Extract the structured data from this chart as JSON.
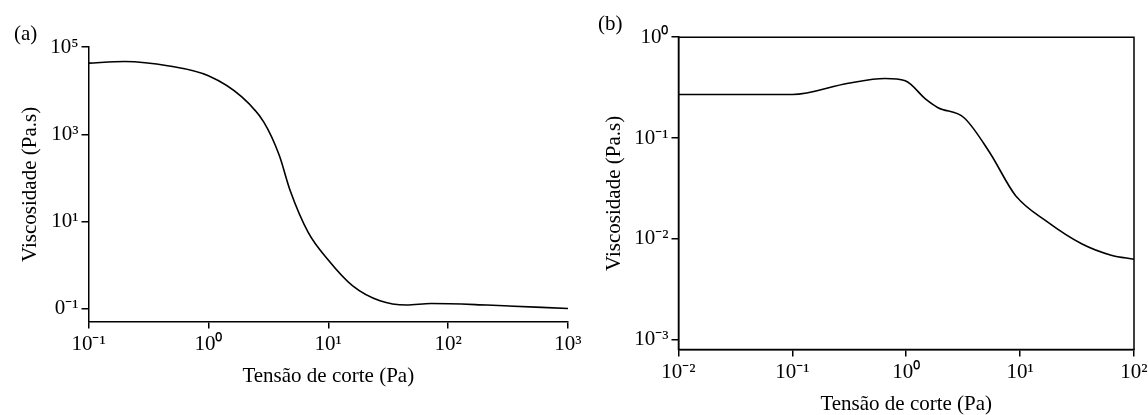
{
  "chart_data": [
    {
      "type": "line",
      "title": "(a)",
      "xlabel": "Tensão de corte (Pa)",
      "ylabel": "Viscosidade (Pa.s)",
      "log": "xy",
      "x": [
        0.1,
        0.2,
        0.47,
        1,
        1.9,
        2.9,
        3.9,
        4.8,
        6.8,
        10,
        16,
        27,
        45,
        72,
        210,
        1000
      ],
      "series": [
        {
          "color": "#000000",
          "values": [
            43000,
            47000,
            37000,
            22000,
            7200,
            1900,
            330,
            52,
            5.6,
            1.3,
            0.33,
            0.15,
            0.12,
            0.13,
            0.12,
            0.1
          ]
        }
      ],
      "xlim": [
        0.1,
        1000
      ],
      "ylim": [
        0.05,
        100000
      ],
      "xticks": [
        {
          "value": 0.1,
          "label": "10⁻¹"
        },
        {
          "value": 1,
          "label": "10⁰"
        },
        {
          "value": 10,
          "label": "10¹"
        },
        {
          "value": 100,
          "label": "10²"
        },
        {
          "value": 1000,
          "label": "10³"
        }
      ],
      "yticks": [
        {
          "value": 0.1,
          "label": "0⁻¹"
        },
        {
          "value": 10,
          "label": "10¹"
        },
        {
          "value": 1000,
          "label": "10³"
        },
        {
          "value": 100000,
          "label": "10⁵"
        }
      ]
    },
    {
      "type": "line",
      "title": "(b)",
      "xlabel": "Tensão de corte (Pa)",
      "ylabel": "Viscosidade (Pa.s)",
      "log": "xy",
      "x": [
        0.01,
        0.1,
        0.31,
        0.65,
        0.98,
        1.5,
        1.9,
        3.2,
        5.4,
        9.1,
        17,
        35,
        63,
        100
      ],
      "series": [
        {
          "color": "#000000",
          "values": [
            0.27,
            0.27,
            0.35,
            0.39,
            0.37,
            0.24,
            0.2,
            0.16,
            0.072,
            0.027,
            0.015,
            0.0089,
            0.0069,
            0.0063
          ]
        }
      ],
      "xlim": [
        0.01,
        100
      ],
      "ylim": [
        0.0008,
        1
      ],
      "xticks": [
        {
          "value": 0.01,
          "label": "10⁻²"
        },
        {
          "value": 0.1,
          "label": "10⁻¹"
        },
        {
          "value": 1,
          "label": "10⁰"
        },
        {
          "value": 10,
          "label": "10¹"
        },
        {
          "value": 100,
          "label": "10²"
        }
      ],
      "yticks": [
        {
          "value": 0.001,
          "label": "10⁻³"
        },
        {
          "value": 0.01,
          "label": "10⁻²"
        },
        {
          "value": 0.1,
          "label": "10⁻¹"
        },
        {
          "value": 1,
          "label": "10⁰"
        }
      ]
    }
  ]
}
